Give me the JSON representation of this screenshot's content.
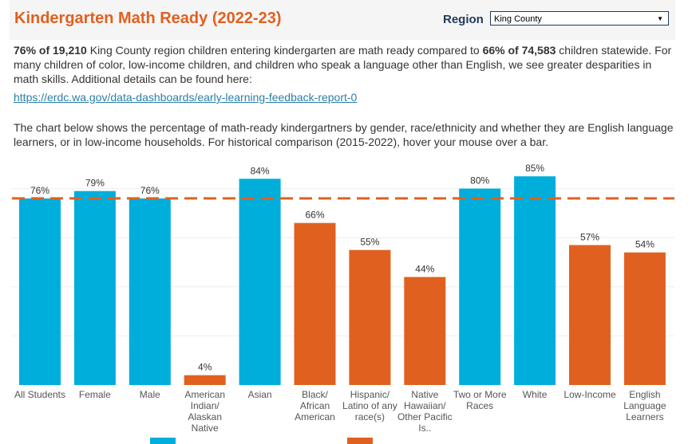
{
  "header": {
    "title": "Kindergarten Math Ready (2022-23)",
    "region_label": "Region",
    "region_value": "King County"
  },
  "summary": {
    "b1": "76% of 19,210",
    "t1": " King County region children entering kindergarten are math ready compared to ",
    "b2": "66% of 74,583",
    "t2": " children statewide. For many children of color, low-income children, and children who speak a language other than English, we see greater desparities in math skills. Additional details can be found here:",
    "link": "https://erdc.wa.gov/data-dashboards/early-learning-feedback-report-0"
  },
  "description": "The chart below shows the percentage of math-ready kindergartners by gender, race/ethnicity and whether they are English language learners, or in low-income households. For historical comparison (2015-2022), hover your mouse over a bar.",
  "chart_data": {
    "type": "bar",
    "categories": [
      "All Students",
      "Female",
      "Male",
      "American Indian/ Alaskan Native",
      "Asian",
      "Black/ African American",
      "Hispanic/ Latino of any race(s)",
      "Native Hawaiian/ Other Pacific Is..",
      "Two or More Races",
      "White",
      "Low-Income",
      "English Language Learners"
    ],
    "values": [
      76,
      79,
      76,
      4,
      84,
      66,
      55,
      44,
      80,
      85,
      57,
      54
    ],
    "labels": [
      "76%",
      "79%",
      "76%",
      "4%",
      "84%",
      "66%",
      "55%",
      "44%",
      "80%",
      "85%",
      "57%",
      "54%"
    ],
    "color_group": [
      "above",
      "above",
      "above",
      "below",
      "above",
      "below",
      "below",
      "below",
      "above",
      "above",
      "below",
      "below"
    ],
    "reference_line": 76,
    "ylim": [
      0,
      100
    ],
    "grid": true,
    "colors": {
      "above": "#00aedb",
      "below": "#e0611f",
      "reference": "#e0611f"
    }
  }
}
